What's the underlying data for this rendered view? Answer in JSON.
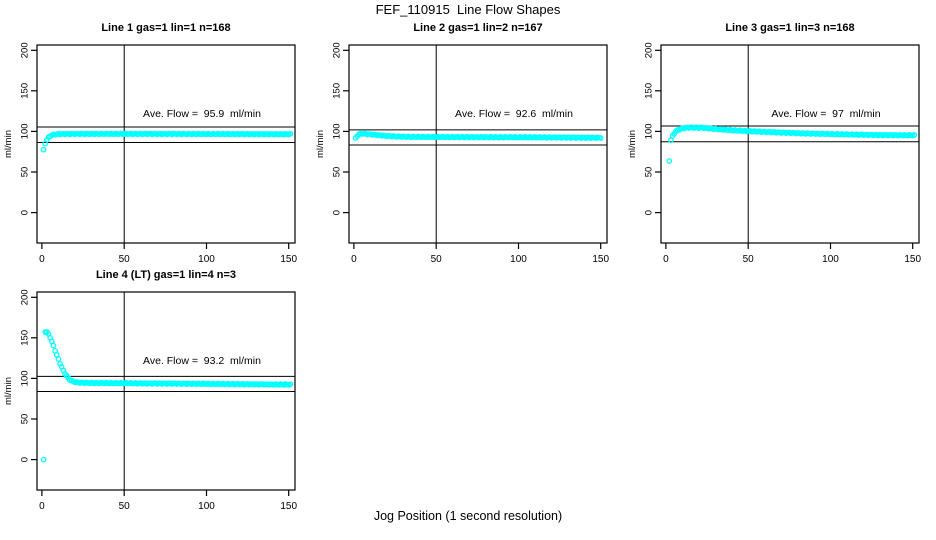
{
  "page": {
    "main_title": "FEF_110915  Line Flow Shapes",
    "x_axis_label": "Jog Position (1 second resolution)",
    "point_color": "#00FFFF",
    "axis_color": "#000000",
    "background_color": "#FFFFFF"
  },
  "chart_data": [
    {
      "type": "scatter",
      "title": "Line 1 gas=1 lin=1 n=168",
      "annotation": "Ave. Flow =  95.9  ml/min",
      "ave_flow_ml_min": 95.9,
      "n": 168,
      "ylabel": "ml/min",
      "xticks": [
        0,
        50,
        100,
        150
      ],
      "yticks": [
        0,
        50,
        100,
        150,
        200
      ],
      "xlim": [
        -3,
        153.8
      ],
      "ylim": [
        -37.5,
        206.5
      ],
      "vline_x": 50,
      "hlines": [
        105.5,
        86.3
      ],
      "x_start": 1,
      "x_end": 151,
      "curve_keypoints": [
        [
          1,
          77
        ],
        [
          2,
          85.5
        ],
        [
          3,
          89.5
        ],
        [
          4,
          92.5
        ],
        [
          5,
          94.5
        ],
        [
          7,
          96
        ],
        [
          10,
          96.8
        ],
        [
          20,
          97
        ],
        [
          60,
          97
        ],
        [
          100,
          96.8
        ],
        [
          151,
          96.6
        ]
      ],
      "outlier_points": []
    },
    {
      "type": "scatter",
      "title": "Line 2 gas=1 lin=2 n=167",
      "annotation": "Ave. Flow =  92.6  ml/min",
      "ave_flow_ml_min": 92.6,
      "n": 167,
      "ylabel": "ml/min",
      "xticks": [
        0,
        50,
        100,
        150
      ],
      "yticks": [
        0,
        50,
        100,
        150,
        200
      ],
      "xlim": [
        -3,
        153.8
      ],
      "ylim": [
        -37.5,
        206.5
      ],
      "vline_x": 50,
      "hlines": [
        101.9,
        83.3
      ],
      "x_start": 1,
      "x_end": 150,
      "curve_keypoints": [
        [
          1,
          91.5
        ],
        [
          2,
          94.5
        ],
        [
          3,
          96.5
        ],
        [
          5,
          97.3
        ],
        [
          8,
          96.8
        ],
        [
          12,
          96
        ],
        [
          18,
          94.8
        ],
        [
          25,
          93.8
        ],
        [
          35,
          93.2
        ],
        [
          60,
          93
        ],
        [
          100,
          92.8
        ],
        [
          150,
          92.2
        ]
      ],
      "outlier_points": []
    },
    {
      "type": "scatter",
      "title": "Line 3 gas=1 lin=3 n=168",
      "annotation": "Ave. Flow =  97  ml/min",
      "ave_flow_ml_min": 97,
      "n": 168,
      "ylabel": "ml/min",
      "xticks": [
        0,
        50,
        100,
        150
      ],
      "yticks": [
        0,
        50,
        100,
        150,
        200
      ],
      "xlim": [
        -3,
        153.8
      ],
      "ylim": [
        -37.5,
        206.5
      ],
      "vline_x": 50,
      "hlines": [
        106.7,
        87.3
      ],
      "x_start": 3,
      "x_end": 151,
      "curve_keypoints": [
        [
          3,
          89
        ],
        [
          4,
          94
        ],
        [
          5,
          97.5
        ],
        [
          6,
          100
        ],
        [
          8,
          102.5
        ],
        [
          10,
          103.8
        ],
        [
          14,
          104.8
        ],
        [
          22,
          104.5
        ],
        [
          30,
          103
        ],
        [
          40,
          101.5
        ],
        [
          50,
          100.3
        ],
        [
          65,
          99
        ],
        [
          85,
          97.5
        ],
        [
          110,
          96.3
        ],
        [
          130,
          95.5
        ],
        [
          151,
          95.2
        ]
      ],
      "outlier_points": [
        [
          2,
          63.5
        ]
      ]
    },
    {
      "type": "scatter",
      "title": "Line 4 (LT) gas=1 lin=4 n=3",
      "annotation": "Ave. Flow =  93.2  ml/min",
      "ave_flow_ml_min": 93.2,
      "n": 3,
      "ylabel": "ml/min",
      "xticks": [
        0,
        50,
        100,
        150
      ],
      "yticks": [
        0,
        50,
        100,
        150,
        200
      ],
      "xlim": [
        -3,
        153.8
      ],
      "ylim": [
        -37.5,
        206.5
      ],
      "vline_x": 50,
      "hlines": [
        102.5,
        83.9
      ],
      "x_start": 2,
      "x_end": 151,
      "curve_keypoints": [
        [
          2,
          157.5
        ],
        [
          3,
          157
        ],
        [
          4,
          154.5
        ],
        [
          5,
          150.5
        ],
        [
          6,
          145.5
        ],
        [
          7,
          140
        ],
        [
          8,
          134.5
        ],
        [
          9,
          129
        ],
        [
          10,
          123.5
        ],
        [
          11,
          118.5
        ],
        [
          12,
          114
        ],
        [
          13,
          109.5
        ],
        [
          14,
          106
        ],
        [
          15,
          103
        ],
        [
          16,
          100.5
        ],
        [
          17,
          98.5
        ],
        [
          18,
          97
        ],
        [
          19,
          96.2
        ],
        [
          21,
          95.3
        ],
        [
          24,
          94.7
        ],
        [
          30,
          94.4
        ],
        [
          45,
          94.2
        ],
        [
          70,
          93.8
        ],
        [
          100,
          93.3
        ],
        [
          130,
          92.8
        ],
        [
          151,
          92.4
        ]
      ],
      "outlier_points": [
        [
          1,
          0
        ]
      ]
    }
  ]
}
